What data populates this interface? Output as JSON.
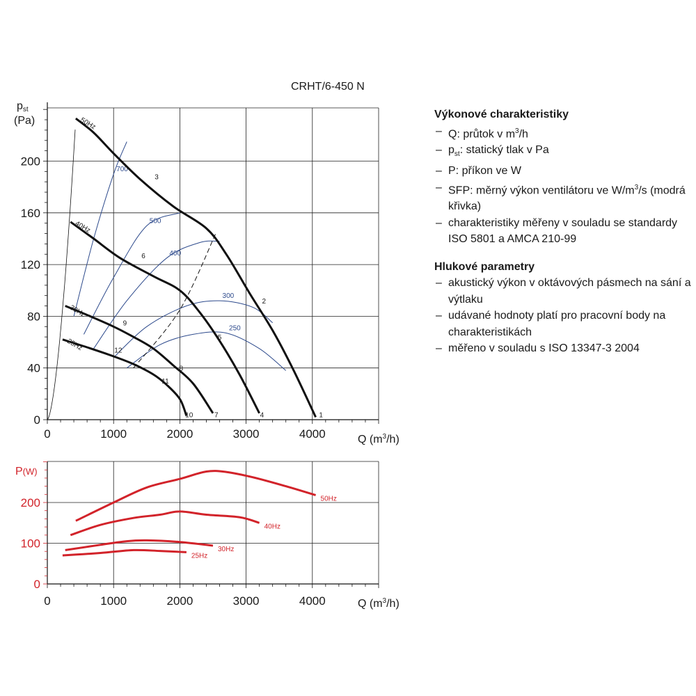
{
  "model": "CRHT/6-450 N",
  "chart_data": [
    {
      "type": "line",
      "title": "",
      "ylabel_main": "p",
      "ylabel_sub": "st",
      "ylabel_unit": "(Pa)",
      "xlabel_main": "Q (m",
      "xlabel_sup": "3",
      "xlabel_end": "/h)",
      "xlim": [
        0,
        5000
      ],
      "ylim": [
        0,
        240
      ],
      "xticks": [
        0,
        1000,
        2000,
        3000,
        4000
      ],
      "yticks": [
        0,
        40,
        80,
        120,
        160,
        200
      ],
      "grid": true,
      "series": [
        {
          "name": "50Hz",
          "color": "#111111",
          "x": [
            430,
            700,
            1000,
            1400,
            1900,
            2400,
            2700,
            3050,
            3400,
            3700,
            4050
          ],
          "y": [
            233,
            222,
            206,
            186,
            165,
            148,
            128,
            98,
            69,
            40,
            2
          ]
        },
        {
          "name": "40Hz",
          "color": "#111111",
          "x": [
            350,
            700,
            1100,
            1600,
            2000,
            2300,
            2600,
            2900,
            3200
          ],
          "y": [
            153,
            140,
            125,
            111,
            100,
            83,
            61,
            35,
            5
          ]
        },
        {
          "name": "30Hz",
          "color": "#111111",
          "x": [
            270,
            600,
            1000,
            1300,
            1600,
            1900,
            2200,
            2500
          ],
          "y": [
            88,
            81,
            72,
            64,
            55,
            42,
            28,
            5
          ]
        },
        {
          "name": "25Hz",
          "color": "#111111",
          "x": [
            230,
            600,
            1000,
            1300,
            1600,
            1800,
            2000,
            2100
          ],
          "y": [
            62,
            56,
            49,
            43,
            35,
            27,
            16,
            3
          ]
        }
      ],
      "sfp_curves": [
        {
          "label": "700",
          "x": [
            400,
            700,
            1000,
            1200
          ],
          "y": [
            80,
            140,
            190,
            215
          ]
        },
        {
          "label": "500",
          "x": [
            550,
            1000,
            1500,
            2000
          ],
          "y": [
            66,
            110,
            150,
            160
          ]
        },
        {
          "label": "400",
          "x": [
            700,
            1200,
            1800,
            2300,
            2600
          ],
          "y": [
            55,
            92,
            125,
            137,
            138
          ]
        },
        {
          "label": "300",
          "x": [
            1000,
            1500,
            2100,
            2600,
            3100,
            3400
          ],
          "y": [
            48,
            72,
            88,
            92,
            87,
            75
          ]
        },
        {
          "label": "250",
          "x": [
            1200,
            1700,
            2200,
            2700,
            3200,
            3600
          ],
          "y": [
            40,
            58,
            66,
            67,
            55,
            38
          ]
        }
      ],
      "system_curve_label": "",
      "efficiency_line": {
        "x": [
          1300,
          2000,
          2550
        ],
        "y": [
          40,
          85,
          145
        ]
      },
      "point_labels": [
        {
          "label": "1",
          "x": 4130,
          "y": 2
        },
        {
          "label": "2",
          "x": 3270,
          "y": 90
        },
        {
          "label": "3",
          "x": 1650,
          "y": 186
        },
        {
          "label": "4",
          "x": 3240,
          "y": 2
        },
        {
          "label": "5",
          "x": 2600,
          "y": 62
        },
        {
          "label": "6",
          "x": 1450,
          "y": 125
        },
        {
          "label": "7",
          "x": 2550,
          "y": 2
        },
        {
          "label": "8",
          "x": 2020,
          "y": 38
        },
        {
          "label": "9",
          "x": 1170,
          "y": 73
        },
        {
          "label": "10",
          "x": 2140,
          "y": 2
        },
        {
          "label": "11",
          "x": 1780,
          "y": 28
        },
        {
          "label": "12",
          "x": 1070,
          "y": 52
        }
      ]
    },
    {
      "type": "line",
      "title": "",
      "ylabel_main": "P",
      "ylabel_unit": "(W)",
      "xlabel_main": "Q (m",
      "xlabel_sup": "3",
      "xlabel_end": "/h)",
      "xlim": [
        0,
        5000
      ],
      "ylim": [
        0,
        300
      ],
      "xticks": [
        0,
        1000,
        2000,
        3000,
        4000
      ],
      "yticks": [
        0,
        100,
        200
      ],
      "grid": true,
      "series": [
        {
          "name": "50Hz",
          "color": "#d2232a",
          "x": [
            430,
            1000,
            1500,
            2000,
            2400,
            2700,
            3100,
            3600,
            4050
          ],
          "y": [
            155,
            200,
            237,
            258,
            276,
            275,
            262,
            240,
            218
          ]
        },
        {
          "name": "40Hz",
          "color": "#d2232a",
          "x": [
            350,
            800,
            1300,
            1700,
            2000,
            2400,
            2900,
            3200
          ],
          "y": [
            120,
            145,
            162,
            170,
            178,
            170,
            164,
            150
          ]
        },
        {
          "name": "30Hz",
          "color": "#d2232a",
          "x": [
            270,
            800,
            1200,
            1500,
            2000,
            2500
          ],
          "y": [
            83,
            96,
            105,
            107,
            103,
            94
          ]
        },
        {
          "name": "25Hz",
          "color": "#d2232a",
          "x": [
            230,
            800,
            1300,
            1700,
            2100
          ],
          "y": [
            70,
            76,
            83,
            81,
            78
          ]
        }
      ]
    }
  ],
  "performance": {
    "heading": "Výkonové charakteristiky",
    "items": [
      {
        "a": "Q: průtok v m",
        "sup": "3",
        "b": "/h"
      },
      {
        "a": "p",
        "sub": "st",
        "b": ": statický tlak v Pa"
      },
      {
        "a": "P: příkon ve W"
      },
      {
        "a": "SFP: měrný výkon ventilátoru ve W/m",
        "sup": "3",
        "b": "/s (modrá křivka)"
      },
      {
        "a": "charakteristiky měřeny v souladu se standardy ISO 5801 a AMCA 210-99"
      }
    ]
  },
  "noise": {
    "heading": "Hlukové parametry",
    "items": [
      {
        "a": "akustický výkon v oktávových pásmech na sání a výtlaku"
      },
      {
        "a": "udávané hodnoty platí pro pracovní body na charakteristikách"
      },
      {
        "a": "měřeno v souladu s ISO 13347-3 2004"
      }
    ]
  },
  "colors": {
    "fan_curve": "#111111",
    "sfp_curve": "#2d4a8c",
    "power_curve": "#d2232a",
    "grid": "#222222"
  }
}
